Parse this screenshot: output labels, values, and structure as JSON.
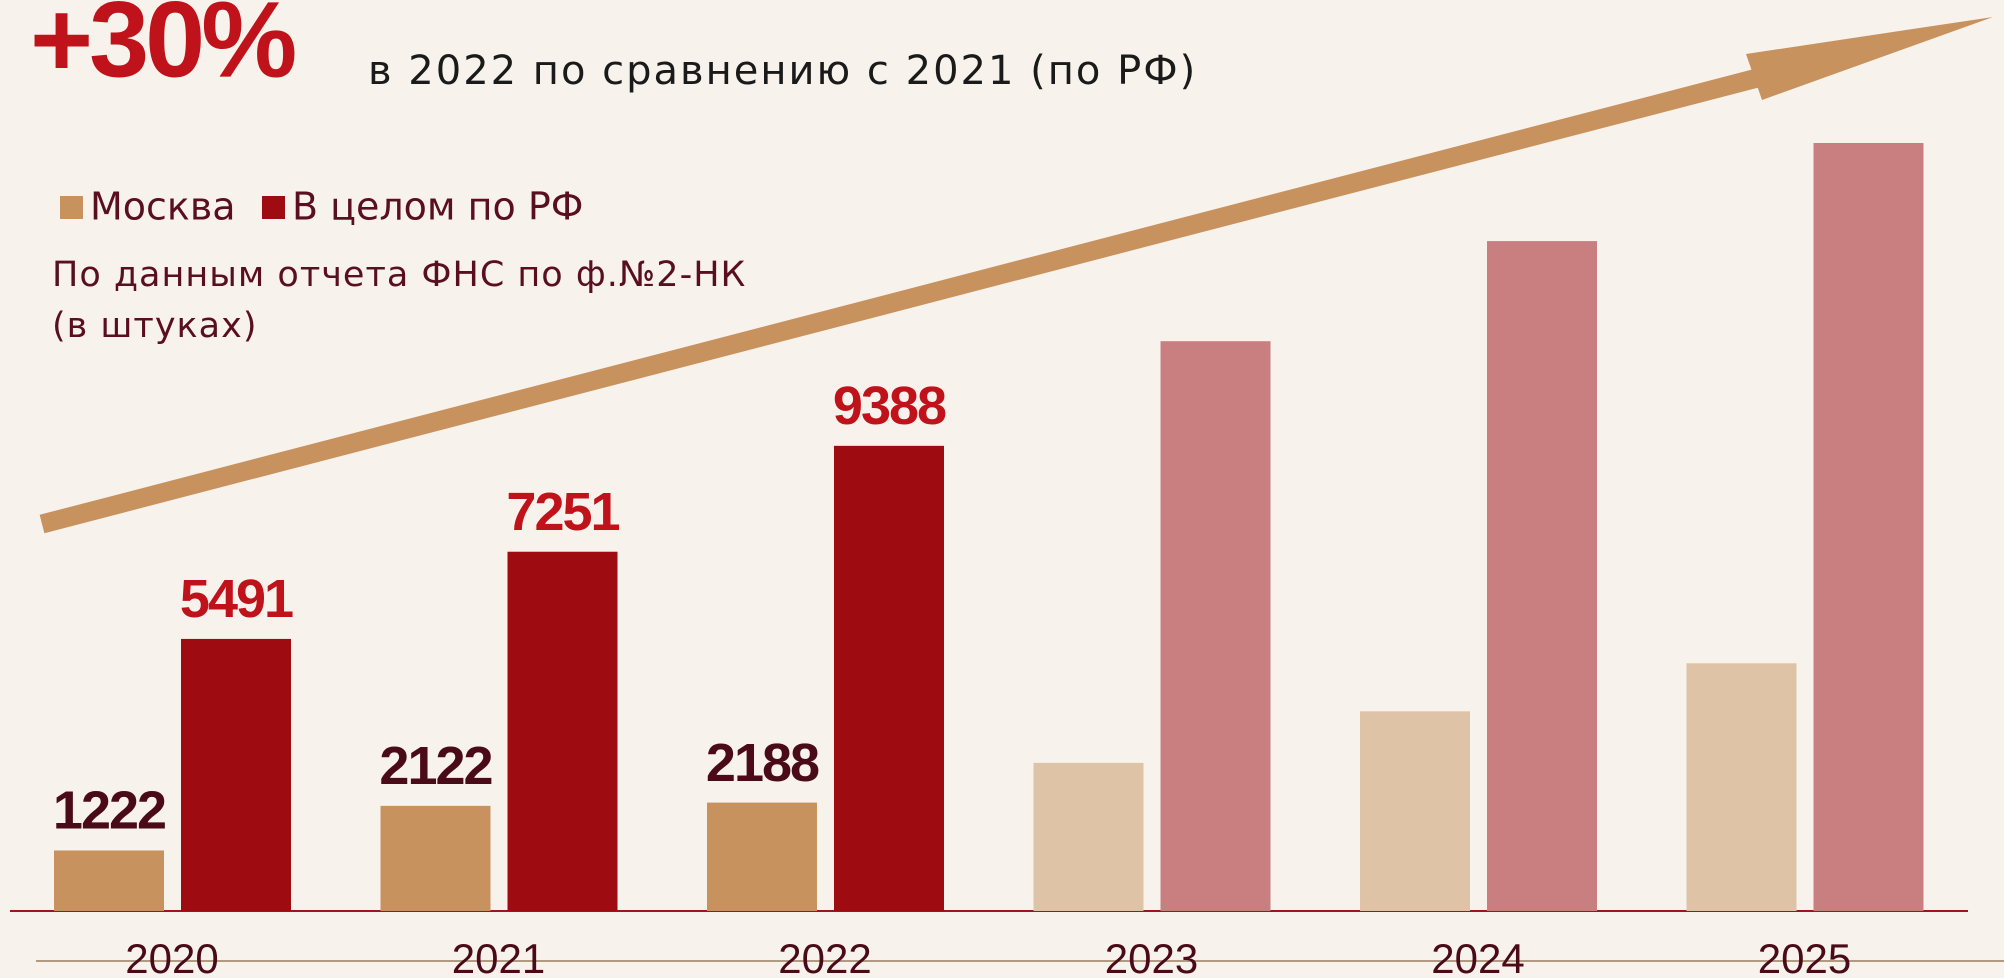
{
  "chart_data": {
    "type": "bar",
    "title": "+30%",
    "subtitle": "в 2022 по сравнению с 2021 (по РФ)",
    "note": [
      "По данным отчета ФНС по ф.№2-НК",
      "(в штуках)"
    ],
    "categories": [
      "2020",
      "2021",
      "2022",
      "2023",
      "2024",
      "2025"
    ],
    "series": [
      {
        "name": "Москва",
        "color": "#c8925f",
        "colors": [
          "#c8925f",
          "#c8925f",
          "#c8925f",
          "#dfc3a7",
          "#dfc3a7",
          "#dfc3a7"
        ],
        "label_color": "#4a0a18",
        "values": [
          1222,
          2122,
          2188,
          2990,
          4030,
          5000
        ],
        "value_labels": [
          "1222",
          "2122",
          "2188",
          null,
          null,
          null
        ]
      },
      {
        "name": "В целом по РФ",
        "color": "#9e0c12",
        "colors": [
          "#9e0c12",
          "#9e0c12",
          "#9e0c12",
          "#c97e80",
          "#c97e80",
          "#c97e80"
        ],
        "label_color": "#c0121a",
        "values": [
          5491,
          7251,
          9388,
          11500,
          13520,
          15500
        ],
        "value_labels": [
          "5491",
          "7251",
          "9388",
          null,
          null,
          null
        ]
      }
    ]
  }
}
